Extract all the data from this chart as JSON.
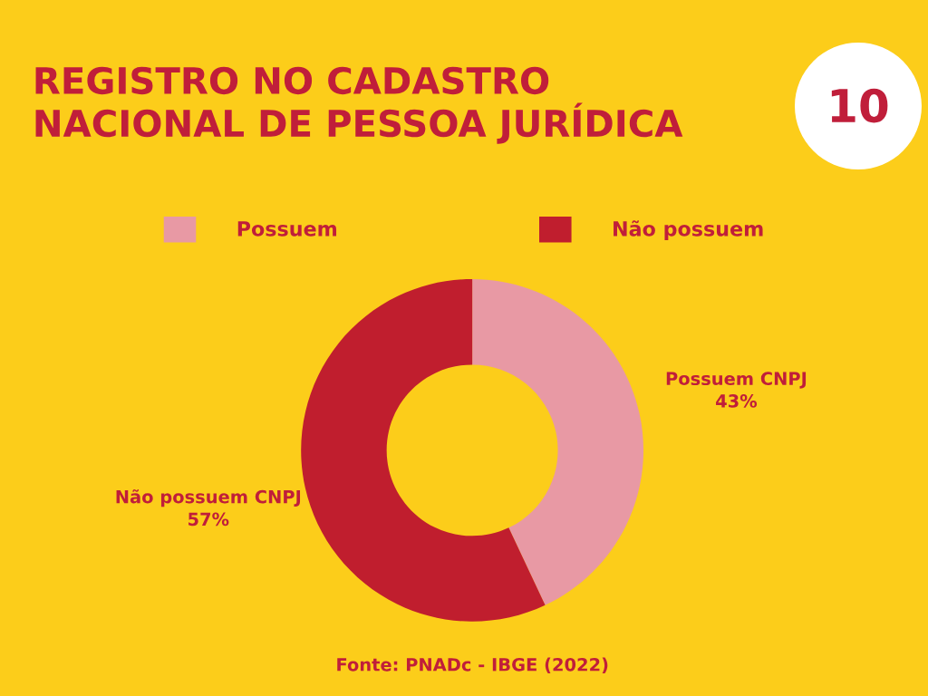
{
  "chart_data": {
    "type": "donut",
    "title": "REGISTRO NO CADASTRO\nNACIONAL DE PESSOA JURÍDICA",
    "categories": [
      "Possuem",
      "Não possuem"
    ],
    "values": [
      43,
      57
    ],
    "colors": [
      "#e899a4",
      "#c01e2e"
    ],
    "value_labels": [
      "Possuem CNPJ\n43%",
      "Não possuem CNPJ\n57%"
    ],
    "legend": "top",
    "annotations": [
      "10",
      "Fonte: PNADc - IBGE (2022)"
    ]
  }
}
